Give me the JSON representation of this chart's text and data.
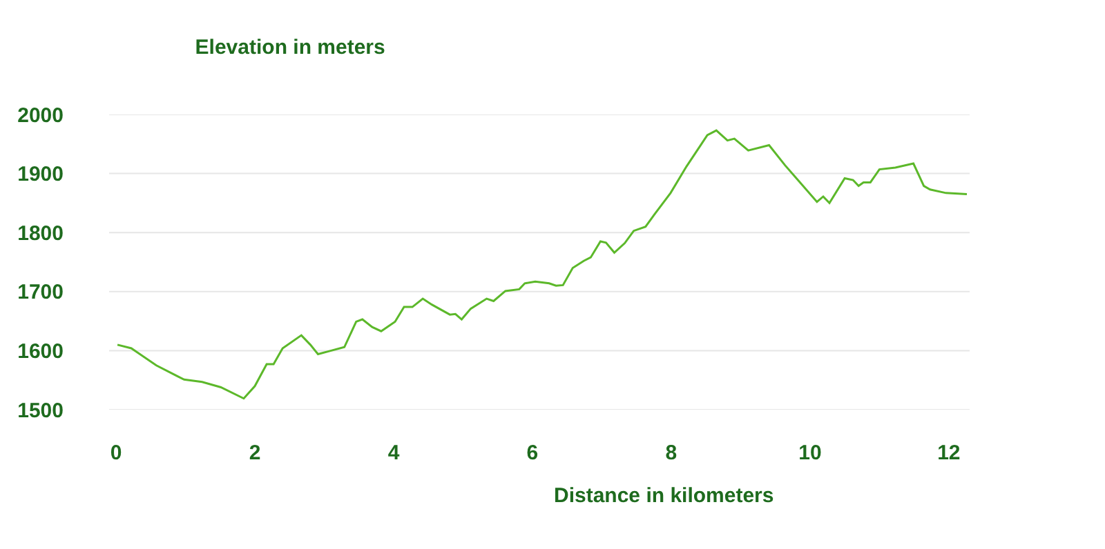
{
  "chart_data": {
    "type": "line",
    "title": "Elevation in meters",
    "xlabel": "Distance in kilometers",
    "x": [
      0.02,
      0.22,
      0.58,
      0.98,
      1.24,
      1.51,
      1.84,
      2.0,
      2.17,
      2.27,
      2.4,
      2.67,
      2.8,
      2.91,
      3.1,
      3.29,
      3.46,
      3.55,
      3.69,
      3.82,
      4.02,
      4.15,
      4.27,
      4.42,
      4.55,
      4.81,
      4.89,
      4.98,
      5.11,
      5.34,
      5.44,
      5.61,
      5.81,
      5.89,
      6.04,
      6.24,
      6.34,
      6.44,
      6.58,
      6.74,
      6.84,
      6.98,
      7.06,
      7.18,
      7.33,
      7.46,
      7.63,
      7.76,
      7.99,
      8.22,
      8.52,
      8.65,
      8.81,
      8.91,
      9.11,
      9.41,
      9.64,
      10.1,
      10.19,
      10.28,
      10.5,
      10.62,
      10.7,
      10.77,
      10.87,
      11.0,
      11.23,
      11.49,
      11.64,
      11.73,
      11.96,
      12.26
    ],
    "series": [
      {
        "color": "#5cb82a",
        "values": [
          1610,
          1604,
          1575,
          1551,
          1547,
          1538,
          1519,
          1540,
          1577,
          1577,
          1604,
          1626,
          1610,
          1594,
          1600,
          1606,
          1649,
          1653,
          1640,
          1633,
          1649,
          1674,
          1674,
          1688,
          1678,
          1661,
          1662,
          1653,
          1671,
          1688,
          1684,
          1701,
          1704,
          1714,
          1717,
          1714,
          1710,
          1711,
          1740,
          1752,
          1758,
          1785,
          1783,
          1766,
          1782,
          1803,
          1810,
          1831,
          1867,
          1912,
          1965,
          1973,
          1956,
          1959,
          1939,
          1948,
          1914,
          1852,
          1861,
          1850,
          1892,
          1889,
          1879,
          1885,
          1885,
          1907,
          1910,
          1917,
          1879,
          1873,
          1867,
          1865
        ]
      }
    ],
    "xlim": [
      -0.1,
      12.3
    ],
    "xticks": [
      0,
      2,
      4,
      6,
      8,
      10,
      12
    ],
    "ylim": [
      1500,
      2000
    ],
    "yticks": [
      1500,
      1600,
      1700,
      1800,
      1900,
      2000
    ],
    "grid": "y",
    "marker": "none",
    "line_style": "solid"
  }
}
